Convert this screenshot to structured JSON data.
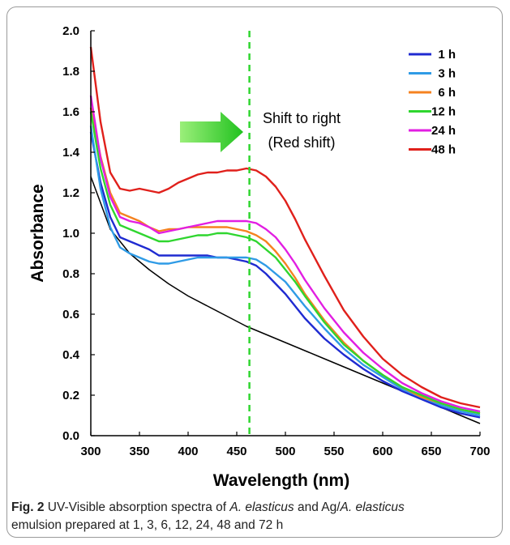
{
  "chart_data": {
    "type": "line",
    "xlabel": "Wavelength (nm)",
    "ylabel": "Absorbance",
    "xlim": [
      300,
      700
    ],
    "ylim": [
      0,
      2.0
    ],
    "xticks": [
      300,
      350,
      400,
      450,
      500,
      550,
      600,
      650,
      700
    ],
    "yticks": [
      "0.0",
      "0.2",
      "0.4",
      "0.6",
      "0.8",
      "1.0",
      "1.2",
      "1.4",
      "1.6",
      "1.8",
      "2.0"
    ],
    "grid": false,
    "legend_position": "top-right",
    "marker_line_x": 463,
    "annotation": [
      "Shift to right",
      "(Red shift)"
    ],
    "series": [
      {
        "name": "",
        "color": "#000000",
        "x": [
          300,
          320,
          340,
          360,
          380,
          400,
          420,
          440,
          460,
          480,
          500,
          520,
          540,
          560,
          580,
          600,
          620,
          640,
          660,
          680,
          700
        ],
        "y": [
          1.28,
          1.02,
          0.9,
          0.82,
          0.75,
          0.69,
          0.64,
          0.59,
          0.54,
          0.5,
          0.46,
          0.42,
          0.38,
          0.34,
          0.3,
          0.26,
          0.22,
          0.18,
          0.14,
          0.1,
          0.06
        ]
      },
      {
        "name": "1 h",
        "color": "#1f2bd1",
        "x": [
          300,
          310,
          320,
          330,
          340,
          350,
          360,
          370,
          380,
          390,
          400,
          410,
          420,
          430,
          440,
          450,
          460,
          470,
          480,
          490,
          500,
          510,
          520,
          540,
          560,
          580,
          600,
          620,
          640,
          660,
          680,
          700
        ],
        "y": [
          1.5,
          1.25,
          1.08,
          0.98,
          0.96,
          0.94,
          0.92,
          0.89,
          0.89,
          0.89,
          0.89,
          0.89,
          0.89,
          0.88,
          0.88,
          0.87,
          0.86,
          0.84,
          0.8,
          0.75,
          0.7,
          0.64,
          0.58,
          0.48,
          0.4,
          0.33,
          0.27,
          0.22,
          0.18,
          0.14,
          0.11,
          0.09
        ]
      },
      {
        "name": "3 h",
        "color": "#2f9be6",
        "x": [
          300,
          310,
          320,
          330,
          340,
          350,
          360,
          370,
          380,
          390,
          400,
          410,
          420,
          430,
          440,
          450,
          460,
          470,
          480,
          490,
          500,
          510,
          520,
          540,
          560,
          580,
          600,
          620,
          640,
          660,
          680,
          700
        ],
        "y": [
          1.53,
          1.22,
          1.03,
          0.93,
          0.9,
          0.88,
          0.86,
          0.85,
          0.85,
          0.86,
          0.87,
          0.88,
          0.88,
          0.88,
          0.88,
          0.88,
          0.88,
          0.87,
          0.84,
          0.8,
          0.76,
          0.7,
          0.64,
          0.53,
          0.43,
          0.35,
          0.29,
          0.23,
          0.19,
          0.15,
          0.12,
          0.1
        ]
      },
      {
        "name": "6 h",
        "color": "#f58220",
        "x": [
          300,
          310,
          320,
          330,
          340,
          350,
          360,
          370,
          380,
          390,
          400,
          410,
          420,
          430,
          440,
          450,
          460,
          470,
          480,
          490,
          500,
          510,
          520,
          540,
          560,
          580,
          600,
          620,
          640,
          660,
          680,
          700
        ],
        "y": [
          1.62,
          1.38,
          1.2,
          1.1,
          1.08,
          1.06,
          1.03,
          1.01,
          1.02,
          1.02,
          1.03,
          1.03,
          1.03,
          1.03,
          1.03,
          1.02,
          1.01,
          0.99,
          0.96,
          0.91,
          0.85,
          0.78,
          0.7,
          0.57,
          0.46,
          0.37,
          0.3,
          0.24,
          0.19,
          0.16,
          0.13,
          0.11
        ]
      },
      {
        "name": "12 h",
        "color": "#2fd62f",
        "x": [
          300,
          310,
          320,
          330,
          340,
          350,
          360,
          370,
          380,
          390,
          400,
          410,
          420,
          430,
          440,
          450,
          460,
          470,
          480,
          490,
          500,
          510,
          520,
          540,
          560,
          580,
          600,
          620,
          640,
          660,
          680,
          700
        ],
        "y": [
          1.6,
          1.32,
          1.14,
          1.04,
          1.02,
          1.0,
          0.98,
          0.96,
          0.96,
          0.97,
          0.98,
          0.99,
          0.99,
          1.0,
          1.0,
          0.99,
          0.98,
          0.96,
          0.92,
          0.88,
          0.82,
          0.76,
          0.69,
          0.56,
          0.45,
          0.37,
          0.3,
          0.24,
          0.2,
          0.16,
          0.13,
          0.11
        ]
      },
      {
        "name": "24 h",
        "color": "#e21ee2",
        "x": [
          300,
          310,
          320,
          330,
          340,
          350,
          360,
          370,
          380,
          390,
          400,
          410,
          420,
          430,
          440,
          450,
          460,
          470,
          480,
          490,
          500,
          510,
          520,
          540,
          560,
          580,
          600,
          620,
          640,
          660,
          680,
          700
        ],
        "y": [
          1.68,
          1.37,
          1.18,
          1.08,
          1.06,
          1.05,
          1.03,
          1.0,
          1.01,
          1.02,
          1.03,
          1.04,
          1.05,
          1.06,
          1.06,
          1.06,
          1.06,
          1.05,
          1.02,
          0.98,
          0.92,
          0.85,
          0.77,
          0.63,
          0.51,
          0.41,
          0.33,
          0.26,
          0.21,
          0.17,
          0.14,
          0.12
        ]
      },
      {
        "name": "48 h",
        "color": "#e0201b",
        "x": [
          300,
          310,
          320,
          330,
          340,
          350,
          360,
          370,
          380,
          390,
          400,
          410,
          420,
          430,
          440,
          450,
          460,
          470,
          480,
          490,
          500,
          510,
          520,
          540,
          560,
          580,
          600,
          620,
          640,
          660,
          680,
          700
        ],
        "y": [
          1.92,
          1.55,
          1.3,
          1.22,
          1.21,
          1.22,
          1.21,
          1.2,
          1.22,
          1.25,
          1.27,
          1.29,
          1.3,
          1.3,
          1.31,
          1.31,
          1.32,
          1.31,
          1.28,
          1.23,
          1.16,
          1.07,
          0.97,
          0.79,
          0.62,
          0.49,
          0.38,
          0.3,
          0.24,
          0.19,
          0.16,
          0.14
        ]
      }
    ]
  },
  "caption": {
    "label": "Fig. 2",
    "p1": "  UV-Visible absorption spectra of ",
    "species": "A. elasticus",
    "p2": " and Ag/",
    "p3": "emulsion prepared at 1, 3, 6, 12, 24, 48 and 72 h"
  }
}
